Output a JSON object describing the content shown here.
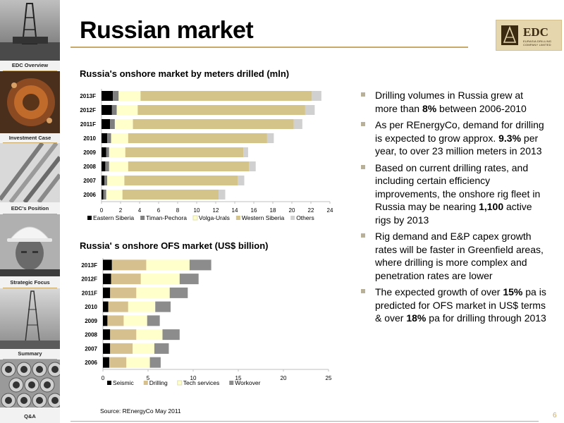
{
  "sidebar": {
    "items": [
      {
        "label": "EDC Overview"
      },
      {
        "label": "Investment Case"
      },
      {
        "label": "EDC's Position"
      },
      {
        "label": "Strategic Focus"
      },
      {
        "label": "Summary"
      },
      {
        "label": "Q&A"
      }
    ]
  },
  "header": {
    "title": "Russian market",
    "logo_text": "EDC",
    "logo_sub": "EURASIA DRILLING COMPANY LIMITED"
  },
  "colors": {
    "accent": "#c9a96a",
    "black": "#000000",
    "darkgray": "#7f7f7f",
    "cream": "#ffffcc",
    "khaki": "#d4c48a",
    "lightgray": "#d0d0d0",
    "tan": "#d6c08e",
    "gray": "#8c8c8c"
  },
  "chart_data": [
    {
      "type": "bar",
      "orientation": "horizontal",
      "stacked": true,
      "title": "Russia's onshore market by meters drilled (mln)",
      "categories": [
        "2013F",
        "2012F",
        "2011F",
        "2010",
        "2009",
        "2008",
        "2007",
        "2006"
      ],
      "xlim": [
        0,
        24
      ],
      "xticks": [
        "0",
        "2",
        "4",
        "6",
        "8",
        "10",
        "12",
        "14",
        "16",
        "18",
        "20",
        "22",
        "24"
      ],
      "legend_position": "bottom",
      "series": [
        {
          "name": "Eastern Siberia",
          "color": "#000000",
          "values": [
            1.2,
            1.1,
            0.9,
            0.6,
            0.5,
            0.4,
            0.3,
            0.2
          ]
        },
        {
          "name": "Timan-Pechora",
          "color": "#7f7f7f",
          "values": [
            0.6,
            0.5,
            0.5,
            0.4,
            0.3,
            0.4,
            0.3,
            0.3
          ]
        },
        {
          "name": "Volga-Urals",
          "color": "#ffffcc",
          "values": [
            2.3,
            2.2,
            1.9,
            1.8,
            1.7,
            2.0,
            1.8,
            1.7
          ]
        },
        {
          "name": "Western Siberia",
          "color": "#d4c48a",
          "values": [
            18.0,
            17.6,
            16.9,
            14.6,
            12.4,
            12.7,
            11.9,
            10.1
          ]
        },
        {
          "name": "Others",
          "color": "#d0d0d0",
          "values": [
            1.0,
            1.0,
            0.9,
            0.7,
            0.5,
            0.7,
            0.7,
            0.7
          ]
        }
      ]
    },
    {
      "type": "bar",
      "orientation": "horizontal",
      "stacked": true,
      "title": "Russia' s onshore OFS market (US$ billion)",
      "categories": [
        "2013F",
        "2012F",
        "2011F",
        "2010",
        "2009",
        "2008",
        "2007",
        "2006"
      ],
      "xlim": [
        0,
        25
      ],
      "xticks": [
        "0",
        "5",
        "10",
        "15",
        "20",
        "25"
      ],
      "legend_position": "bottom",
      "series": [
        {
          "name": "Seismic",
          "color": "#000000",
          "values": [
            1.0,
            0.9,
            0.8,
            0.6,
            0.5,
            0.8,
            0.8,
            0.7
          ]
        },
        {
          "name": "Drilling",
          "color": "#d6c08e",
          "values": [
            3.8,
            3.3,
            2.9,
            2.2,
            1.8,
            2.9,
            2.5,
            1.9
          ]
        },
        {
          "name": "Tech services",
          "color": "#ffffcc",
          "values": [
            4.8,
            4.3,
            3.7,
            3.0,
            2.6,
            2.9,
            2.4,
            2.6
          ]
        },
        {
          "name": "Workover",
          "color": "#8c8c8c",
          "values": [
            2.4,
            2.1,
            2.0,
            1.7,
            1.4,
            1.9,
            1.6,
            1.2
          ]
        }
      ]
    }
  ],
  "bullets": [
    {
      "parts": [
        {
          "t": "Drilling volumes in Russia grew at more than ",
          "b": false
        },
        {
          "t": "8%",
          "b": true
        },
        {
          "t": " between 2006-2010",
          "b": false
        }
      ]
    },
    {
      "parts": [
        {
          "t": "As per REnergyCo, demand for drilling is expected to grow approx. ",
          "b": false
        },
        {
          "t": "9.3%",
          "b": true
        },
        {
          "t": " per year, to over 23 million meters in 2013",
          "b": false
        }
      ]
    },
    {
      "parts": [
        {
          "t": "Based on current drilling rates, and including certain efficiency improvements, the onshore rig fleet in Russia may be nearing ",
          "b": false
        },
        {
          "t": "1,100",
          "b": true
        },
        {
          "t": " active rigs by 2013",
          "b": false
        }
      ]
    },
    {
      "parts": [
        {
          "t": "Rig demand and E&P capex growth rates will be faster in Greenfield areas, where drilling is more complex and penetration rates are lower",
          "b": false
        }
      ]
    },
    {
      "parts": [
        {
          "t": "The expected growth of over ",
          "b": false
        },
        {
          "t": "15%",
          "b": true
        },
        {
          "t": " pa is predicted for OFS  market in US$ terms & over ",
          "b": false
        },
        {
          "t": "18%",
          "b": true
        },
        {
          "t": " pa for drilling through 2013",
          "b": false
        }
      ]
    }
  ],
  "footer": {
    "source": "Source: REnergyCo May 2011",
    "page": "6"
  }
}
